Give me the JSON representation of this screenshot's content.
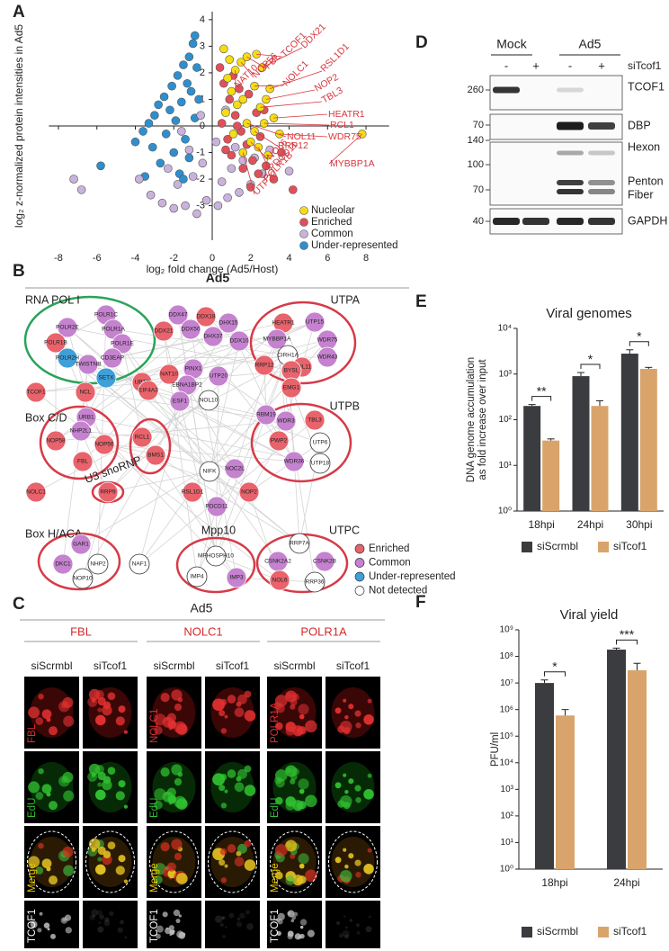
{
  "chart_data": [
    {
      "type": "scatter",
      "panel": "A",
      "y_label": "log₂ z-normalized protein intensities in Ad5",
      "x_label": "log₂ fold change (Ad5/Host)",
      "xlim": [
        -8.5,
        9.2
      ],
      "ylim": [
        -4.3,
        4.3
      ],
      "xticks": [
        -8,
        -6,
        -4,
        -2,
        0,
        2,
        4,
        6,
        8
      ],
      "yticks": [
        -3,
        -2,
        -1,
        0,
        1,
        2,
        3,
        4
      ],
      "legend": "lower right",
      "series": [
        {
          "name": "Nucleolar",
          "color": "#f6dc12",
          "x": [
            1.2,
            1.5,
            1.8,
            2.3,
            2.6,
            2.2,
            3.0,
            2.8,
            2.5,
            3.2,
            2.7,
            1.8,
            2.2,
            3.5,
            2.0,
            2.4,
            2.9,
            1.6,
            7.8,
            0.8,
            1.0,
            0.6,
            1.3,
            0.7,
            1.1,
            1.6,
            0.9
          ],
          "values": [
            2.1,
            2.4,
            2.6,
            2.7,
            2.2,
            1.5,
            1.4,
            1.0,
            0.7,
            0.3,
            0.1,
            0.1,
            -0.2,
            -0.3,
            -0.6,
            -0.8,
            -1.1,
            -1.0,
            -0.3,
            1.8,
            1.3,
            2.9,
            0.8,
            0.5,
            -0.3,
            1.0,
            2.5
          ],
          "point_labels": [
            "NAT10",
            "NOP56",
            "FBL",
            "TCOF1",
            "DDX21",
            "NOLC1",
            "RSL1D1",
            "NOP2",
            "TBL3",
            "HEATR1",
            "RCL1",
            "NOL11",
            "RRP12",
            "WDR75",
            "NOL6",
            "PDCD11",
            "POLR1B",
            "UTP20",
            "MYBBP1A",
            null,
            null,
            null,
            null,
            null,
            null,
            null,
            null
          ]
        },
        {
          "name": "Enriched",
          "color": "#e0505a",
          "x": [
            0.4,
            0.6,
            0.9,
            1.2,
            1.5,
            1.8,
            2.1,
            2.4,
            2.8,
            3.2,
            0.5,
            0.8,
            1.1,
            1.4,
            1.9,
            2.3,
            2.7,
            3.6,
            4.2,
            1.0,
            1.6,
            2.0,
            0.7,
            1.3,
            2.5
          ],
          "values": [
            2.2,
            1.6,
            1.0,
            0.4,
            -0.2,
            -0.7,
            -1.3,
            -1.8,
            -1.5,
            -2.0,
            0.1,
            -0.5,
            1.9,
            1.4,
            1.2,
            0.5,
            0.6,
            -1.0,
            -2.4,
            -1.1,
            -1.6,
            -2.3,
            -0.9,
            0.0,
            -0.4
          ]
        },
        {
          "name": "Common",
          "color": "#c9b3dd",
          "x": [
            -7.2,
            -6.8,
            -3.2,
            -2.6,
            -2.0,
            -1.4,
            -0.8,
            -0.3,
            0.3,
            0.8,
            1.4,
            2.0,
            2.6,
            -1.8,
            -1.0,
            -0.5,
            0.5,
            1.0,
            1.6,
            -2.3,
            -1.2,
            0.2,
            1.2,
            2.2,
            -0.6,
            0.7,
            3.0,
            4.0,
            -3.8,
            -1.6
          ],
          "values": [
            -2.0,
            -2.4,
            -2.6,
            -2.9,
            -3.1,
            -3.0,
            -3.3,
            -2.8,
            -3.0,
            -2.7,
            -2.5,
            -2.2,
            -1.8,
            -2.2,
            -1.9,
            -1.4,
            -2.1,
            -1.6,
            -1.3,
            -1.6,
            -0.9,
            -0.6,
            -0.8,
            -1.2,
            0.4,
            0.6,
            -0.9,
            -1.7,
            -2.0,
            -0.2
          ]
        },
        {
          "name": "Under-represented",
          "color": "#2f8fce",
          "x": [
            -0.9,
            -1.0,
            -1.2,
            -0.8,
            -1.5,
            -1.8,
            -2.1,
            -1.3,
            -2.5,
            -2.8,
            -3.0,
            -3.3,
            -3.6,
            -4.0,
            -2.2,
            -1.6,
            -1.1,
            -0.7,
            -1.9,
            -2.4,
            -3.1,
            -1.4,
            -0.9,
            -2.7,
            -1.7,
            -1.2,
            -5.8,
            -1.5,
            -2.0,
            -3.5
          ],
          "values": [
            3.4,
            3.1,
            2.6,
            2.2,
            2.3,
            1.9,
            1.5,
            1.6,
            1.1,
            0.8,
            0.4,
            0.1,
            -0.2,
            -0.6,
            0.6,
            0.9,
            1.3,
            1.0,
            0.2,
            -0.3,
            -0.8,
            -0.5,
            0.3,
            -1.4,
            -1.8,
            -1.2,
            -1.5,
            -2.0,
            -1.0,
            -1.9
          ]
        }
      ]
    },
    {
      "type": "bar",
      "panel": "E",
      "title": "Viral genomes",
      "y_label": [
        "DNA genome accumulation",
        "as fold increase over input"
      ],
      "log_scale": true,
      "categories": [
        "18hpi",
        "24hpi",
        "30hpi"
      ],
      "series": [
        {
          "name": "siScrmbl",
          "color": "#3a3c3f",
          "values": [
            200,
            900,
            2800
          ],
          "errors": [
            15,
            180,
            600
          ]
        },
        {
          "name": "siTcof1",
          "color": "#d9a46c",
          "values": [
            35,
            200,
            1300
          ],
          "errors": [
            3,
            60,
            100
          ]
        }
      ],
      "significance": [
        "**",
        "*",
        "*"
      ],
      "ylim": [
        1,
        10000
      ],
      "yticks": [
        {
          "value": 1,
          "label": "10⁰"
        },
        {
          "value": 10,
          "label": "10¹"
        },
        {
          "value": 100,
          "label": "10²"
        },
        {
          "value": 1000,
          "label": "10³"
        },
        {
          "value": 10000,
          "label": "10⁴"
        }
      ]
    },
    {
      "type": "bar",
      "panel": "F",
      "title": "Viral yield",
      "y_label": [
        "PFU/ml"
      ],
      "log_scale": true,
      "categories": [
        "18hpi",
        "24hpi"
      ],
      "series": [
        {
          "name": "siScrmbl",
          "color": "#3a3c3f",
          "values": [
            10000000,
            180000000
          ],
          "errors": [
            3000000,
            25000000
          ]
        },
        {
          "name": "siTcof1",
          "color": "#d9a46c",
          "values": [
            600000,
            30000000
          ],
          "errors": [
            400000,
            25000000
          ]
        }
      ],
      "significance": [
        "*",
        "***"
      ],
      "ylim": [
        1,
        1000000000
      ],
      "yticks": [
        {
          "value": 1,
          "label": "10⁰"
        },
        {
          "value": 10,
          "label": "10¹"
        },
        {
          "value": 100,
          "label": "10²"
        },
        {
          "value": 1000,
          "label": "10³"
        },
        {
          "value": 10000,
          "label": "10⁴"
        },
        {
          "value": 100000,
          "label": "10⁵"
        },
        {
          "value": 1000000,
          "label": "10⁶"
        },
        {
          "value": 10000000,
          "label": "10⁷"
        },
        {
          "value": 100000000,
          "label": "10⁸"
        },
        {
          "value": 1000000000,
          "label": "10⁹"
        }
      ]
    }
  ],
  "network": {
    "panel": "B",
    "title": "Ad5",
    "complexes": [
      "RNA POL I",
      "UTPA",
      "Box C/D",
      "UTPB",
      "U3 snoRNP",
      "Box H/ACA",
      "Mpp10",
      "UTPC"
    ],
    "statuses": [
      {
        "name": "Enriched",
        "color": "#e8636b"
      },
      {
        "name": "Common",
        "color": "#c582cf"
      },
      {
        "name": "Under-represented",
        "color": "#3f9fd8"
      },
      {
        "name": "Not detected",
        "color": "#ffffff"
      }
    ],
    "nodes": [
      {
        "label": "POLR1C",
        "status": 1
      },
      {
        "label": "POLR2E",
        "status": 1
      },
      {
        "label": "POLR1A",
        "status": 1
      },
      {
        "label": "POLR1B",
        "status": 0
      },
      {
        "label": "POLR1E",
        "status": 1
      },
      {
        "label": "POLR2H",
        "status": 2
      },
      {
        "label": "TWISTNB",
        "status": 1
      },
      {
        "label": "CD3EAP",
        "status": 1
      },
      {
        "label": "SETX",
        "status": 2
      },
      {
        "label": "UBTF",
        "status": 0
      },
      {
        "label": "TCOF1",
        "status": 0
      },
      {
        "label": "NCL",
        "status": 0
      },
      {
        "label": "DDX47",
        "status": 1
      },
      {
        "label": "DDX18",
        "status": 0
      },
      {
        "label": "DHX15",
        "status": 1
      },
      {
        "label": "DDX21",
        "status": 0
      },
      {
        "label": "DDX50",
        "status": 1
      },
      {
        "label": "DHX37",
        "status": 1
      },
      {
        "label": "DDX10",
        "status": 1
      },
      {
        "label": "HEATR1",
        "status": 0
      },
      {
        "label": "UTP15",
        "status": 1
      },
      {
        "label": "MYBBP1A",
        "status": 1
      },
      {
        "label": "WDR75",
        "status": 1
      },
      {
        "label": "CIRH1A",
        "status": 3
      },
      {
        "label": "WDR43",
        "status": 1
      },
      {
        "label": "NOL11",
        "status": 0
      },
      {
        "label": "NAT10",
        "status": 0
      },
      {
        "label": "PINX1",
        "status": 1
      },
      {
        "label": "UTP20",
        "status": 1
      },
      {
        "label": "RRP12",
        "status": 0
      },
      {
        "label": "BYSL",
        "status": 0
      },
      {
        "label": "EIF4A3",
        "status": 0
      },
      {
        "label": "EBNA1BP2",
        "status": 1
      },
      {
        "label": "ESF1",
        "status": 1
      },
      {
        "label": "NOL10",
        "status": 3
      },
      {
        "label": "EMG1",
        "status": 0
      },
      {
        "label": "RBM19",
        "status": 1
      },
      {
        "label": "URB1",
        "status": 1
      },
      {
        "label": "NHP2L1",
        "status": 1
      },
      {
        "label": "NOP58",
        "status": 0
      },
      {
        "label": "NOP56",
        "status": 0
      },
      {
        "label": "FBL",
        "status": 0
      },
      {
        "label": "RCL1",
        "status": 0
      },
      {
        "label": "BMS1",
        "status": 0
      },
      {
        "label": "WDR3",
        "status": 1
      },
      {
        "label": "TBL3",
        "status": 0
      },
      {
        "label": "PWP2",
        "status": 0
      },
      {
        "label": "UTP6",
        "status": 3
      },
      {
        "label": "WDR36",
        "status": 1
      },
      {
        "label": "UTP18",
        "status": 3
      },
      {
        "label": "NIFK",
        "status": 3
      },
      {
        "label": "NOC2L",
        "status": 1
      },
      {
        "label": "RSL1D1",
        "status": 0
      },
      {
        "label": "NOP2",
        "status": 0
      },
      {
        "label": "PDCD11",
        "status": 1
      },
      {
        "label": "RRP9",
        "status": 0
      },
      {
        "label": "NOLC1",
        "status": 0
      },
      {
        "label": "GAR1",
        "status": 1
      },
      {
        "label": "DKC1",
        "status": 1
      },
      {
        "label": "NHP2",
        "status": 3
      },
      {
        "label": "NOP10",
        "status": 3
      },
      {
        "label": "NAF1",
        "status": 3
      },
      {
        "label": "MPHOSPH10",
        "status": 3
      },
      {
        "label": "IMP4",
        "status": 3
      },
      {
        "label": "IMP3",
        "status": 1
      },
      {
        "label": "RRP7A",
        "status": 3
      },
      {
        "label": "CSNK2A2",
        "status": 1
      },
      {
        "label": "CSNK2B",
        "status": 1
      },
      {
        "label": "NOL6",
        "status": 0
      },
      {
        "label": "RRP36",
        "status": 3
      }
    ]
  },
  "microscopy": {
    "panel": "C",
    "title": "Ad5",
    "blocks": [
      {
        "target": "FBL",
        "conditions": [
          "siScrmbl",
          "siTcof1"
        ],
        "channels": [
          "FBL",
          "EdU",
          "Merge",
          "TCOF1"
        ]
      },
      {
        "target": "NOLC1",
        "conditions": [
          "siScrmbl",
          "siTcof1"
        ],
        "channels": [
          "NOLC1",
          "EdU",
          "Merge",
          "TCOF1"
        ]
      },
      {
        "target": "POLR1A",
        "conditions": [
          "siScrmbl",
          "siTcof1"
        ],
        "channels": [
          "POLR1A",
          "EdU",
          "Merge",
          "TCOF1"
        ]
      }
    ]
  },
  "blot": {
    "panel": "D",
    "groups": [
      "Mock",
      "Ad5"
    ],
    "lanes": [
      "-",
      "+",
      "-",
      "+"
    ],
    "treatment": "siTcof1",
    "markers": [
      260,
      70,
      140,
      100,
      70,
      40
    ],
    "proteins": [
      "TCOF1",
      "DBP",
      "Hexon",
      "Penton",
      "Fiber",
      "GAPDH"
    ]
  }
}
